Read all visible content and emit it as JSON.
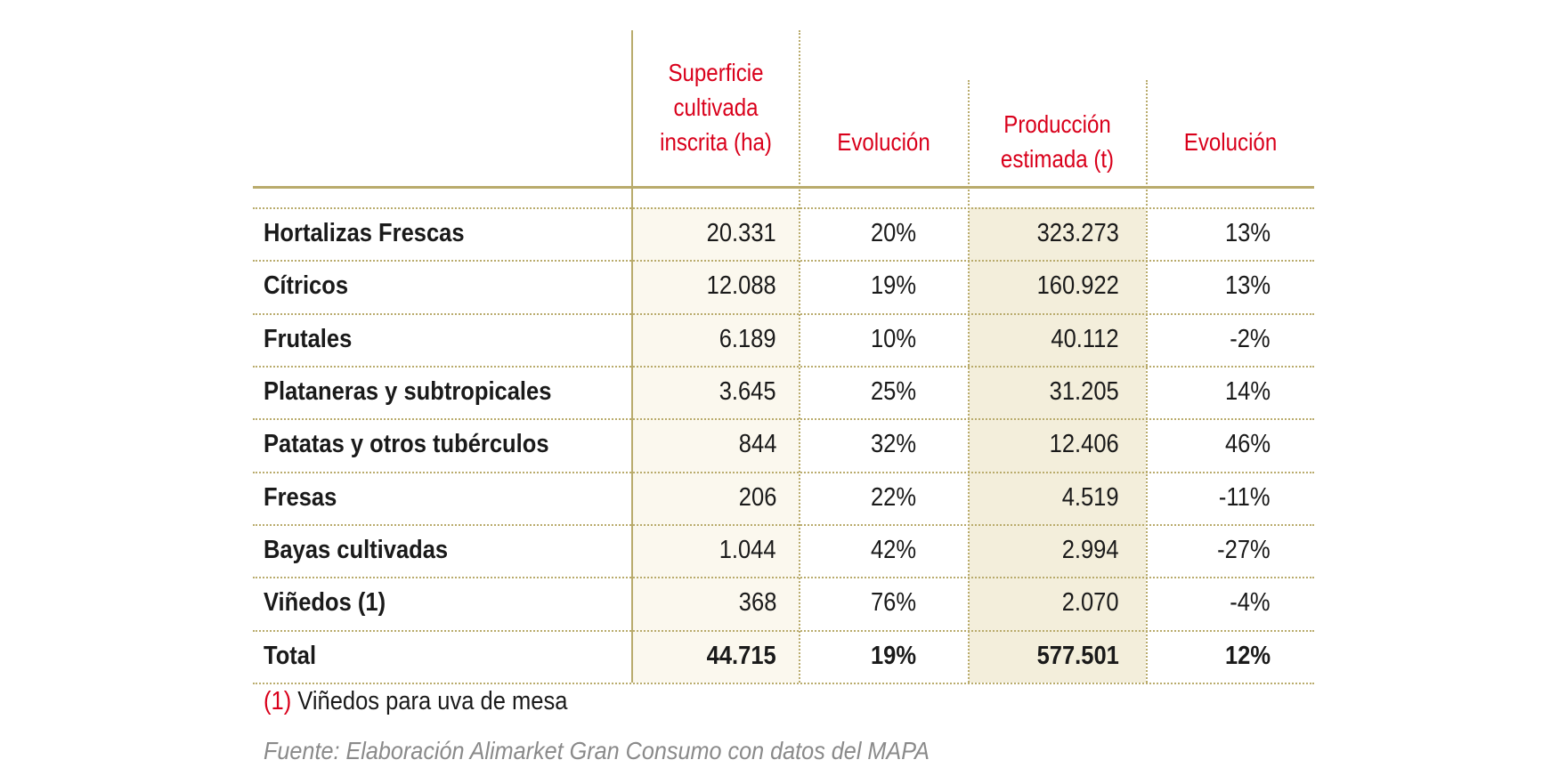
{
  "headers": {
    "superficie": [
      "Superficie",
      "cultivada",
      "inscrita (ha)"
    ],
    "evolucion1": "Evolución",
    "produccion": [
      "Producción",
      "estimada (t)"
    ],
    "evolucion2": "Evolución"
  },
  "rows": [
    {
      "label": "Hortalizas Frescas",
      "superficie": "20.331",
      "evol_sup": "20%",
      "produccion": "323.273",
      "evol_prod": "13%"
    },
    {
      "label": "Cítricos",
      "superficie": "12.088",
      "evol_sup": "19%",
      "produccion": "160.922",
      "evol_prod": "13%"
    },
    {
      "label": "Frutales",
      "superficie": "6.189",
      "evol_sup": "10%",
      "produccion": "40.112",
      "evol_prod": "-2%"
    },
    {
      "label": "Plataneras y subtropicales",
      "superficie": "3.645",
      "evol_sup": "25%",
      "produccion": "31.205",
      "evol_prod": "14%"
    },
    {
      "label": "Patatas y otros tubérculos",
      "superficie": "844",
      "evol_sup": "32%",
      "produccion": "12.406",
      "evol_prod": "46%"
    },
    {
      "label": "Fresas",
      "superficie": "206",
      "evol_sup": "22%",
      "produccion": "4.519",
      "evol_prod": "-11%"
    },
    {
      "label": "Bayas cultivadas",
      "superficie": "1.044",
      "evol_sup": "42%",
      "produccion": "2.994",
      "evol_prod": "-27%"
    },
    {
      "label": "Viñedos (1)",
      "superficie": "368",
      "evol_sup": "76%",
      "produccion": "2.070",
      "evol_prod": "-4%"
    },
    {
      "label": "Total",
      "superficie": "44.715",
      "evol_sup": "19%",
      "produccion": "577.501",
      "evol_prod": "12%"
    }
  ],
  "footnote": {
    "marker": "(1)",
    "text": " Viñedos para uva de mesa"
  },
  "source": "Fuente: Elaboración Alimarket Gran Consumo con datos del MAPA",
  "colors": {
    "header": "#d9001b",
    "rule": "#b9ab6c",
    "shade_light": "#fbf8ee",
    "shade_dark": "#f3eedb"
  }
}
